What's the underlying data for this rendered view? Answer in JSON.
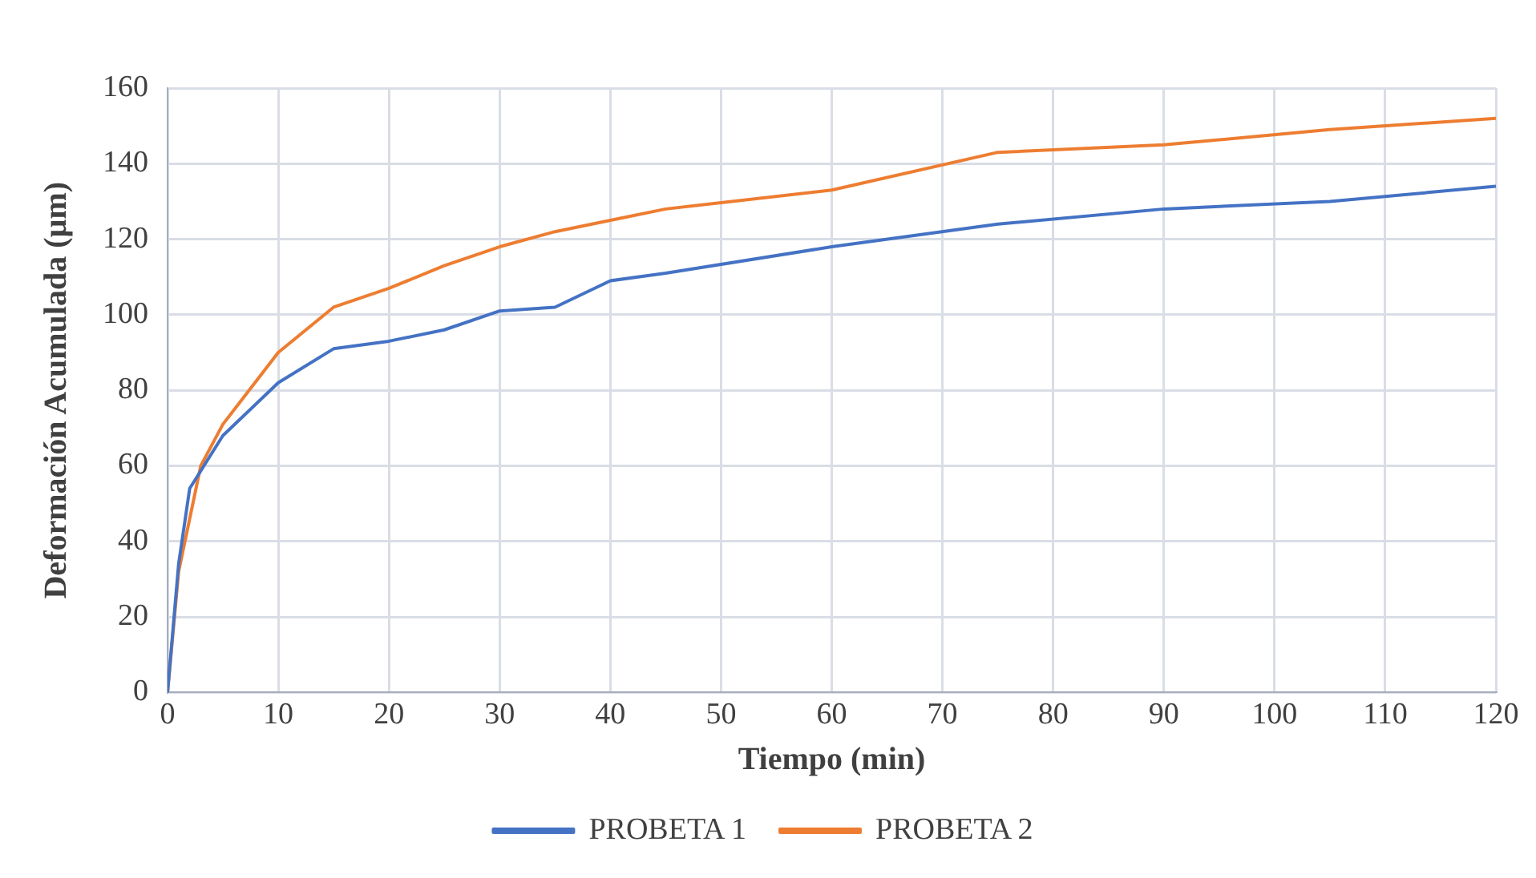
{
  "chart_data": {
    "type": "line",
    "xlabel": "Tiempo (min)",
    "ylabel": "Deformación Acumulada (µm)",
    "xlim": [
      0,
      120
    ],
    "xticks": [
      0,
      10,
      20,
      30,
      40,
      50,
      60,
      70,
      80,
      90,
      100,
      110,
      120
    ],
    "ylim": [
      0,
      160
    ],
    "yticks": [
      0,
      20,
      40,
      60,
      80,
      100,
      120,
      140,
      160
    ],
    "grid": true,
    "legend": "bottom",
    "marker": "none",
    "line_style": "solid",
    "series": [
      {
        "name": "PROBETA 1",
        "color": "#4472c4",
        "x": [
          0,
          1,
          2,
          5,
          10,
          15,
          20,
          25,
          30,
          35,
          40,
          45,
          60,
          75,
          90,
          105,
          120
        ],
        "values": [
          0,
          34,
          54,
          68,
          82,
          91,
          93,
          96,
          101,
          102,
          109,
          111,
          118,
          124,
          128,
          130,
          134
        ]
      },
      {
        "name": "PROBETA 2",
        "color": "#ed7d31",
        "x": [
          0,
          1,
          3,
          5,
          10,
          15,
          20,
          25,
          30,
          35,
          40,
          45,
          60,
          75,
          90,
          105,
          120
        ],
        "values": [
          0,
          32,
          60,
          71,
          90,
          102,
          107,
          113,
          118,
          122,
          125,
          128,
          133,
          143,
          145,
          149,
          152
        ]
      }
    ]
  }
}
